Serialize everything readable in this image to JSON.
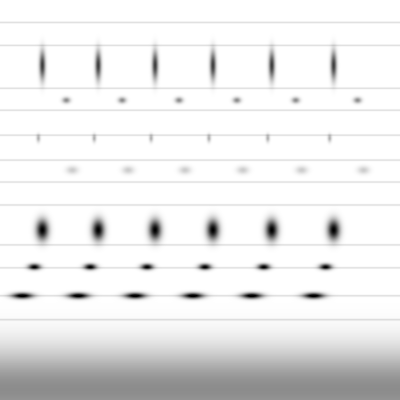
{
  "chart_data": {
    "type": "spectrogram",
    "tick_labels": false,
    "xlim": [
      0,
      400
    ],
    "ylim": [
      0,
      400
    ],
    "color_range": [
      0,
      1
    ],
    "call_times": [
      42,
      98,
      155,
      213,
      272,
      334
    ],
    "syllables": [
      {
        "dx": 0,
        "freq": 335,
        "width": 3,
        "height": 14,
        "intensity": 0.75
      },
      {
        "dx": 24,
        "freq": 300,
        "width": 4,
        "height": 3,
        "intensity": 0.45
      },
      {
        "dx": -4,
        "freq": 262,
        "width": 2,
        "height": 4,
        "intensity": 0.3
      },
      {
        "dx": 0,
        "freq": 170,
        "width": 6,
        "height": 10,
        "intensity": 1.0
      },
      {
        "dx": -8,
        "freq": 133,
        "width": 6,
        "height": 3,
        "intensity": 0.95
      },
      {
        "dx": -20,
        "freq": 104,
        "width": 10,
        "height": 3,
        "intensity": 1.0
      },
      {
        "dx": 30,
        "freq": 230,
        "width": 6,
        "height": 4,
        "intensity": 0.2
      }
    ],
    "noise_band": {
      "freq": 10,
      "height": 40,
      "intensity": 0.45
    },
    "hum_lines": {
      "freqs": [
        378,
        355,
        312,
        290,
        265,
        240,
        218,
        195,
        155,
        132,
        104,
        80
      ],
      "intensity": 0.12
    }
  }
}
